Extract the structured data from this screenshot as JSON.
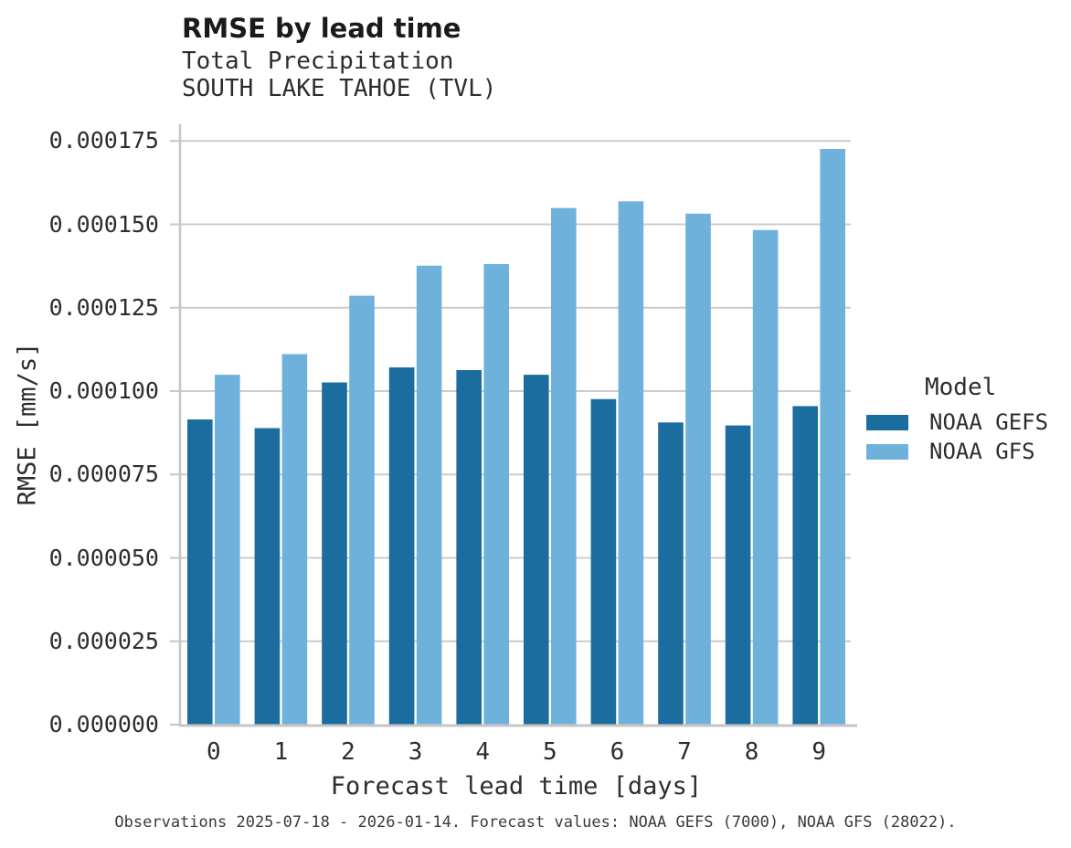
{
  "header": {
    "title": "RMSE by lead time",
    "subtitle_line1": "Total Precipitation",
    "subtitle_line2": "SOUTH LAKE TAHOE (TVL)"
  },
  "chart_data": {
    "type": "bar",
    "title": "RMSE by lead time",
    "subtitle": "Total Precipitation — SOUTH LAKE TAHOE (TVL)",
    "xlabel": "Forecast lead time [days]",
    "ylabel": "RMSE [mm/s]",
    "categories": [
      "0",
      "1",
      "2",
      "3",
      "4",
      "5",
      "6",
      "7",
      "8",
      "9"
    ],
    "series": [
      {
        "name": "NOAA GEFS",
        "color": "#1a6d9e",
        "values": [
          9.15e-05,
          8.89e-05,
          0.0001026,
          0.0001071,
          0.0001063,
          0.0001049,
          9.76e-05,
          9.06e-05,
          8.97e-05,
          9.55e-05
        ]
      },
      {
        "name": "NOAA GFS",
        "color": "#6eb2dc",
        "values": [
          0.0001049,
          0.0001111,
          0.0001286,
          0.0001376,
          0.0001381,
          0.0001549,
          0.0001569,
          0.0001532,
          0.0001483,
          0.0001726
        ]
      }
    ],
    "ylim": [
      0,
      0.00018
    ],
    "y_tick_values": [
      0,
      2.5e-05,
      5e-05,
      7.5e-05,
      0.0001,
      0.000125,
      0.00015,
      0.000175
    ],
    "y_tick_labels": [
      "0.000000",
      "0.000025",
      "0.000050",
      "0.000075",
      "0.000100",
      "0.000125",
      "0.000150",
      "0.000175"
    ],
    "grid": "horizontal",
    "legend": {
      "title": "Model",
      "position": "right"
    }
  },
  "footer": {
    "note": "Observations 2025-07-18 - 2026-01-14. Forecast values: NOAA GEFS (7000), NOAA GFS (28022)."
  },
  "colors": {
    "grid": "#cccccc",
    "axis": "#c6c6c6",
    "gefs": "#1a6d9e",
    "gfs": "#6eb2dc"
  }
}
